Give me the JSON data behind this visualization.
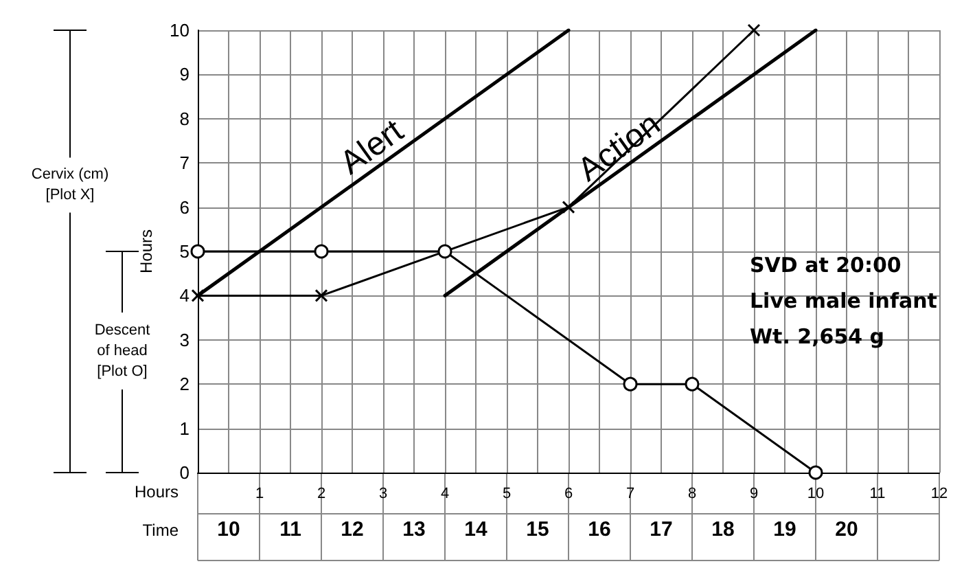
{
  "chart_data": {
    "type": "line",
    "xlabel": "Hours",
    "ylabel": "Hours",
    "x2label": "Time",
    "xlim": [
      0,
      12
    ],
    "xticks": [
      {
        "value": 0,
        "label": null
      },
      1,
      2,
      3,
      4,
      5,
      6,
      7,
      8,
      9,
      10,
      11,
      12
    ],
    "x2lim": [
      9.5,
      21.5
    ],
    "x2ticks": [
      10,
      11,
      12,
      13,
      14,
      15,
      16,
      17,
      18,
      19,
      20
    ],
    "ylim": [
      0,
      10
    ],
    "yticks": [
      0,
      1,
      2,
      3,
      4,
      5,
      6,
      7,
      8,
      9,
      10
    ],
    "grid": true,
    "line_style": "solid",
    "series": [
      {
        "name": "Alert",
        "color": "#000000",
        "x": [
          0,
          6
        ],
        "values": [
          4,
          10
        ]
      },
      {
        "name": "Action",
        "color": "#000000",
        "x": [
          4,
          10
        ],
        "values": [
          4,
          10
        ]
      },
      {
        "color": "#000000",
        "x": [
          0,
          2,
          6,
          9
        ],
        "values": [
          4,
          4,
          6,
          10
        ],
        "marker": "cross"
      },
      {
        "color": "#000000",
        "x": [
          0,
          2,
          4,
          7,
          8,
          10
        ],
        "values": [
          5,
          5,
          5,
          2,
          2,
          0
        ],
        "marker": "circle"
      }
    ],
    "annotations": [
      "Cervix (cm)\n[Plot X]",
      "Descent\nof head\n[Plot O]",
      "SVD at 20:00",
      "Live male infant",
      "Wt. 2,654 g"
    ]
  }
}
